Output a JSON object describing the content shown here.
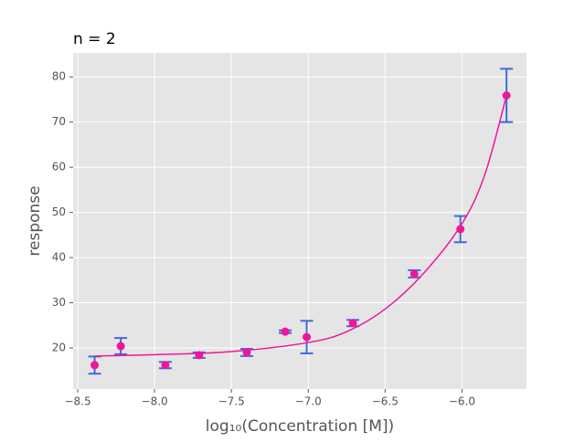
{
  "chart_data": {
    "type": "errorbar",
    "title": "n = 2",
    "xlabel": "log₁₀(Concentration [M])",
    "ylabel": "response",
    "xlim": [
      -8.53,
      -5.58
    ],
    "ylim": [
      10.9,
      85.3
    ],
    "xticks": [
      {
        "value": -8.5,
        "label": "−8.5"
      },
      {
        "value": -8.0,
        "label": "−8.0"
      },
      {
        "value": -7.5,
        "label": "−7.5"
      },
      {
        "value": -7.0,
        "label": "−7.0"
      },
      {
        "value": -6.5,
        "label": "−6.5"
      },
      {
        "value": -6.0,
        "label": "−6.0"
      }
    ],
    "yticks": [
      20,
      30,
      40,
      50,
      60,
      70,
      80
    ],
    "grid": true,
    "series": [
      {
        "kind": "points",
        "color": "#f0169a",
        "error_color": "#3d6bdb",
        "x": [
          -8.39,
          -8.22,
          -7.93,
          -7.71,
          -7.4,
          -7.15,
          -7.01,
          -6.71,
          -6.31,
          -6.01,
          -5.71
        ],
        "values": [
          16.2,
          20.4,
          16.2,
          18.4,
          19.0,
          23.6,
          22.4,
          25.5,
          36.4,
          46.3,
          75.9
        ],
        "errors": [
          1.9,
          1.8,
          0.7,
          0.6,
          0.8,
          0.3,
          3.6,
          0.7,
          0.8,
          2.9,
          5.9
        ]
      },
      {
        "kind": "fit",
        "color": "#f0169a",
        "x": [
          -8.39,
          -8.0,
          -7.5,
          -7.0,
          -6.75,
          -6.5,
          -6.25,
          -6.0,
          -5.85,
          -5.71
        ],
        "values": [
          18.2,
          18.5,
          19.2,
          21.2,
          23.6,
          28.6,
          36.5,
          47.5,
          58.5,
          75.9
        ]
      }
    ]
  }
}
